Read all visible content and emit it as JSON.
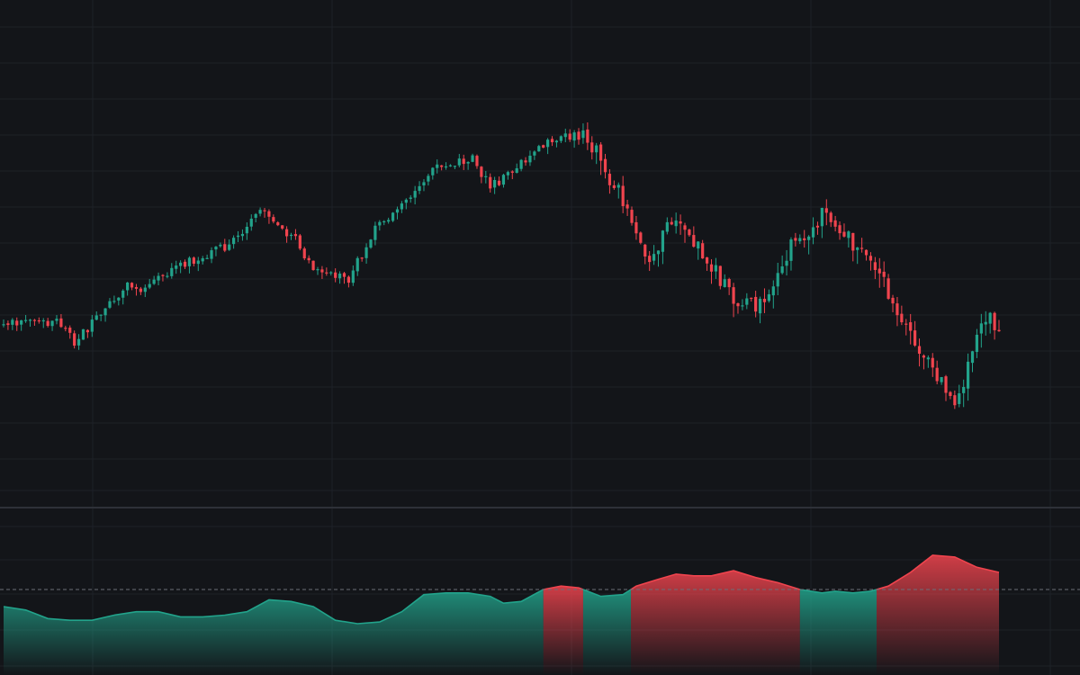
{
  "colors": {
    "background": "#131519",
    "grid": "#1e2127",
    "up": "#22a38b",
    "down": "#f0444e",
    "separator": "#2e3138",
    "threshold_line": "#6b6f78"
  },
  "chart_data": [
    {
      "type": "candlestick",
      "panel": "price",
      "ylim": [
        0,
        100
      ],
      "grid": true,
      "count": 226,
      "up_color": "#22a38b",
      "down_color": "#f0444e",
      "anchors": [
        {
          "i": 0,
          "v": 37
        },
        {
          "i": 12,
          "v": 38
        },
        {
          "i": 16,
          "v": 32
        },
        {
          "i": 28,
          "v": 48
        },
        {
          "i": 30,
          "v": 46
        },
        {
          "i": 40,
          "v": 54
        },
        {
          "i": 50,
          "v": 59
        },
        {
          "i": 58,
          "v": 69
        },
        {
          "i": 66,
          "v": 61
        },
        {
          "i": 70,
          "v": 52
        },
        {
          "i": 78,
          "v": 50
        },
        {
          "i": 84,
          "v": 64
        },
        {
          "i": 98,
          "v": 82
        },
        {
          "i": 106,
          "v": 84
        },
        {
          "i": 110,
          "v": 76
        },
        {
          "i": 118,
          "v": 84
        },
        {
          "i": 124,
          "v": 90
        },
        {
          "i": 132,
          "v": 91
        },
        {
          "i": 140,
          "v": 72
        },
        {
          "i": 145,
          "v": 55
        },
        {
          "i": 152,
          "v": 68
        },
        {
          "i": 160,
          "v": 54
        },
        {
          "i": 165,
          "v": 44
        },
        {
          "i": 172,
          "v": 43
        },
        {
          "i": 178,
          "v": 60
        },
        {
          "i": 185,
          "v": 68
        },
        {
          "i": 192,
          "v": 60
        },
        {
          "i": 198,
          "v": 50
        },
        {
          "i": 203,
          "v": 40
        },
        {
          "i": 210,
          "v": 24
        },
        {
          "i": 216,
          "v": 15
        },
        {
          "i": 219,
          "v": 30
        },
        {
          "i": 222,
          "v": 40
        },
        {
          "i": 225,
          "v": 37
        }
      ]
    },
    {
      "type": "area",
      "panel": "oscillator",
      "ylim": [
        0,
        100
      ],
      "threshold": 50,
      "up_color": "#22a38b",
      "down_color": "#f0444e",
      "x": [
        0,
        5,
        10,
        15,
        20,
        25,
        30,
        35,
        40,
        45,
        50,
        55,
        60,
        65,
        70,
        75,
        80,
        85,
        90,
        95,
        100,
        105,
        110,
        113,
        117,
        122,
        126,
        130,
        135,
        140,
        143,
        148,
        152,
        156,
        160,
        165,
        170,
        175,
        180,
        185,
        188,
        192,
        196,
        200,
        205,
        210,
        215,
        220,
        225
      ],
      "values": [
        40,
        38,
        33,
        32,
        32,
        35,
        37,
        37,
        34,
        34,
        35,
        37,
        44,
        43,
        40,
        32,
        30,
        31,
        37,
        47,
        48,
        48,
        46,
        42,
        43,
        50,
        52,
        51,
        46,
        47,
        52,
        56,
        59,
        58,
        58,
        61,
        57,
        54,
        50,
        48,
        49,
        48,
        49,
        52,
        60,
        70,
        69,
        63,
        60
      ]
    }
  ]
}
